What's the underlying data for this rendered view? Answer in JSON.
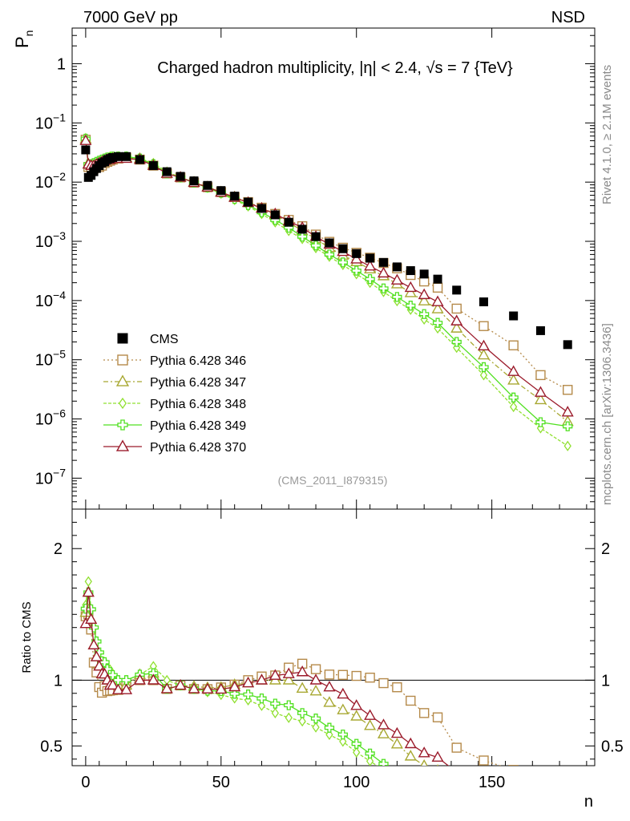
{
  "header": {
    "left": "7000 GeV pp",
    "right": "NSD"
  },
  "side_labels": {
    "rivet": "Rivet 4.1.0, ≥ 2.1M events",
    "mcplots": "mcplots.cern.ch [arXiv:1306.3436]"
  },
  "colors": {
    "cms": "#000000",
    "s346": "#b58a4a",
    "s347": "#a8a832",
    "s348": "#90e030",
    "s349": "#50e020",
    "s370": "#9b1b2b"
  },
  "chart_data": {
    "type": "scatter",
    "title": "Charged hadron multiplicity, |η| < 2.4, √s = 7 {TeV}",
    "annotation": "(CMS_2011_I879315)",
    "xlabel": "n",
    "ylabel": "P_n",
    "ratio_ylabel": "Ratio to CMS",
    "xlim": [
      -5,
      188
    ],
    "ylim": [
      3e-08,
      4
    ],
    "ratio_ylim": [
      0.35,
      2.3
    ],
    "xticks": [
      0,
      50,
      100,
      150
    ],
    "yticks_labels": [
      "1",
      "10^-1",
      "10^-2",
      "10^-3",
      "10^-4",
      "10^-5",
      "10^-6",
      "10^-7"
    ],
    "ratio_ytick_labels": [
      "0.5",
      "1",
      "2"
    ],
    "legend": [
      "CMS",
      "Pythia 6.428 346",
      "Pythia 6.428 347",
      "Pythia 6.428 348",
      "Pythia 6.428 349",
      "Pythia 6.428 370"
    ],
    "cms": {
      "x": [
        0,
        1,
        2,
        3,
        4,
        5,
        6,
        7,
        8,
        9,
        10,
        12,
        15,
        20,
        25,
        30,
        35,
        40,
        45,
        50,
        55,
        60,
        65,
        70,
        75,
        80,
        85,
        90,
        95,
        100,
        105,
        110,
        115,
        120,
        125,
        130,
        137,
        147,
        158,
        168,
        178
      ],
      "y": [
        0.035,
        0.012,
        0.013,
        0.015,
        0.017,
        0.019,
        0.021,
        0.022,
        0.024,
        0.025,
        0.026,
        0.027,
        0.027,
        0.024,
        0.019,
        0.015,
        0.0125,
        0.0105,
        0.0088,
        0.0072,
        0.0058,
        0.0046,
        0.0036,
        0.0028,
        0.0021,
        0.0016,
        0.0012,
        0.00094,
        0.00075,
        0.00062,
        0.00052,
        0.00044,
        0.00037,
        0.00032,
        0.00028,
        0.00023,
        0.00015,
        9.5e-05,
        5.5e-05,
        3.1e-05,
        1.8e-05
      ]
    },
    "series": [
      {
        "name": "Pythia 6.428 346",
        "x": [
          0,
          1,
          2,
          3,
          4,
          5,
          6,
          7,
          8,
          9,
          10,
          12,
          15,
          20,
          25,
          30,
          35,
          40,
          45,
          50,
          55,
          60,
          65,
          70,
          75,
          80,
          85,
          90,
          95,
          100,
          105,
          110,
          115,
          120,
          125,
          130,
          137,
          147,
          158,
          168,
          178
        ],
        "y": [
          0.052,
          0.018,
          0.018,
          0.017,
          0.018,
          0.018,
          0.019,
          0.021,
          0.022,
          0.023,
          0.024,
          0.025,
          0.026,
          0.024,
          0.019,
          0.014,
          0.012,
          0.0098,
          0.0082,
          0.0068,
          0.0056,
          0.0046,
          0.0037,
          0.0029,
          0.0023,
          0.0018,
          0.0013,
          0.00098,
          0.00078,
          0.00064,
          0.00053,
          0.00043,
          0.00035,
          0.00027,
          0.00021,
          0.000165,
          7.3e-05,
          3.7e-05,
          1.75e-05,
          5.5e-06,
          3.1e-06
        ]
      },
      {
        "name": "Pythia 6.428 347",
        "x": [
          0,
          1,
          2,
          3,
          4,
          5,
          6,
          7,
          8,
          9,
          10,
          12,
          15,
          20,
          25,
          30,
          35,
          40,
          45,
          50,
          55,
          60,
          65,
          70,
          75,
          80,
          85,
          90,
          95,
          100,
          105,
          110,
          115,
          120,
          125,
          130,
          137,
          147,
          158,
          168,
          178
        ],
        "y": [
          0.053,
          0.02,
          0.019,
          0.019,
          0.02,
          0.021,
          0.022,
          0.023,
          0.024,
          0.025,
          0.025,
          0.026,
          0.026,
          0.025,
          0.02,
          0.014,
          0.012,
          0.01,
          0.0083,
          0.0068,
          0.0056,
          0.0045,
          0.0036,
          0.0028,
          0.0021,
          0.0015,
          0.0011,
          0.00078,
          0.00058,
          0.00045,
          0.00034,
          0.00026,
          0.00019,
          0.000135,
          9.8e-05,
          7.2e-05,
          3.4e-05,
          1.2e-05,
          4.5e-06,
          2.1e-06,
          9e-07
        ]
      },
      {
        "name": "Pythia 6.428 348",
        "x": [
          0,
          1,
          2,
          3,
          4,
          5,
          6,
          7,
          8,
          9,
          10,
          12,
          15,
          20,
          25,
          30,
          35,
          40,
          45,
          50,
          55,
          60,
          65,
          70,
          75,
          80,
          85,
          90,
          95,
          100,
          105,
          110,
          115,
          120,
          125,
          130,
          137,
          147,
          158,
          168,
          178
        ],
        "y": [
          0.055,
          0.021,
          0.02,
          0.021,
          0.022,
          0.023,
          0.024,
          0.025,
          0.026,
          0.027,
          0.027,
          0.027,
          0.027,
          0.025,
          0.021,
          0.015,
          0.012,
          0.0098,
          0.008,
          0.0064,
          0.005,
          0.0039,
          0.0029,
          0.0021,
          0.0015,
          0.0011,
          0.00077,
          0.00055,
          0.0004,
          0.00028,
          0.0002,
          0.00014,
          9.8e-05,
          7e-05,
          4.8e-05,
          3.4e-05,
          1.6e-05,
          5.5e-06,
          1.6e-06,
          7e-07,
          3.5e-07
        ]
      },
      {
        "name": "Pythia 6.428 349",
        "x": [
          0,
          1,
          2,
          3,
          4,
          5,
          6,
          7,
          8,
          9,
          10,
          12,
          15,
          20,
          25,
          30,
          35,
          40,
          45,
          50,
          55,
          60,
          65,
          70,
          75,
          80,
          85,
          90,
          95,
          100,
          105,
          110,
          115,
          120,
          125,
          130,
          137,
          147,
          158,
          168,
          178
        ],
        "y": [
          0.054,
          0.02,
          0.02,
          0.021,
          0.022,
          0.023,
          0.024,
          0.025,
          0.026,
          0.026,
          0.027,
          0.027,
          0.027,
          0.025,
          0.02,
          0.014,
          0.012,
          0.0098,
          0.0081,
          0.0066,
          0.0052,
          0.0041,
          0.0031,
          0.0023,
          0.0017,
          0.0012,
          0.00085,
          0.0006,
          0.00044,
          0.00032,
          0.00023,
          0.00016,
          0.000115,
          8.2e-05,
          5.9e-05,
          4.2e-05,
          2e-05,
          7.5e-06,
          2.3e-06,
          8.8e-07,
          7.5e-07
        ]
      },
      {
        "name": "Pythia 6.428 370",
        "x": [
          0,
          1,
          2,
          3,
          4,
          5,
          6,
          7,
          8,
          9,
          10,
          12,
          15,
          20,
          25,
          30,
          35,
          40,
          45,
          50,
          55,
          60,
          65,
          70,
          75,
          80,
          85,
          90,
          95,
          100,
          105,
          110,
          115,
          120,
          125,
          130,
          137,
          147,
          158,
          168,
          178
        ],
        "y": [
          0.05,
          0.02,
          0.019,
          0.019,
          0.02,
          0.021,
          0.022,
          0.023,
          0.024,
          0.024,
          0.025,
          0.025,
          0.025,
          0.024,
          0.019,
          0.014,
          0.012,
          0.0098,
          0.0082,
          0.0067,
          0.0055,
          0.0045,
          0.0036,
          0.0029,
          0.0022,
          0.0017,
          0.0012,
          0.00089,
          0.00067,
          0.0005,
          0.00038,
          0.00029,
          0.00022,
          0.000165,
          0.000125,
          9.5e-05,
          4.5e-05,
          1.7e-05,
          6.3e-06,
          2.8e-06,
          1.3e-06
        ]
      }
    ]
  }
}
